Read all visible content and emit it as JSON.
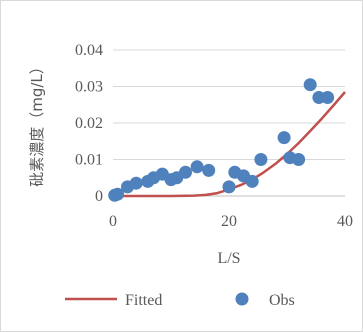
{
  "chart_data": {
    "type": "scatter",
    "title": "",
    "xlabel": "L/S",
    "ylabel": "砒素濃度（mg/L）",
    "xlim": [
      0,
      40
    ],
    "ylim": [
      0,
      0.04
    ],
    "x_ticks": [
      "0",
      "20",
      "40"
    ],
    "y_ticks": [
      "0",
      "0.01",
      "0.02",
      "0.03",
      "0.04"
    ],
    "grid": "horizontal",
    "legend": "bottom",
    "series": [
      {
        "name": "Fitted",
        "kind": "line",
        "color": "#c0504d",
        "x": [
          0,
          5,
          10,
          14,
          16,
          18,
          20,
          22,
          24,
          26,
          28,
          30,
          32,
          34,
          36,
          38,
          40
        ],
        "y": [
          0,
          0,
          0,
          0.0001,
          0.0003,
          0.0008,
          0.0018,
          0.003,
          0.0045,
          0.0065,
          0.0088,
          0.0115,
          0.0145,
          0.0178,
          0.0212,
          0.0248,
          0.0285
        ]
      },
      {
        "name": "Obs",
        "kind": "scatter",
        "color": "#4f81bd",
        "x": [
          0.3,
          0.8,
          2.5,
          4,
          6,
          7,
          8.5,
          10,
          11,
          12.5,
          14.5,
          16.5,
          20,
          21,
          22.5,
          24,
          25.5,
          29.5,
          30.5,
          32,
          34,
          35.5,
          37
        ],
        "y": [
          0.0002,
          0.0005,
          0.0025,
          0.0035,
          0.004,
          0.005,
          0.006,
          0.0045,
          0.005,
          0.0065,
          0.008,
          0.007,
          0.0025,
          0.0065,
          0.0055,
          0.004,
          0.01,
          0.016,
          0.0105,
          0.01,
          0.0305,
          0.027,
          0.027
        ]
      }
    ]
  }
}
